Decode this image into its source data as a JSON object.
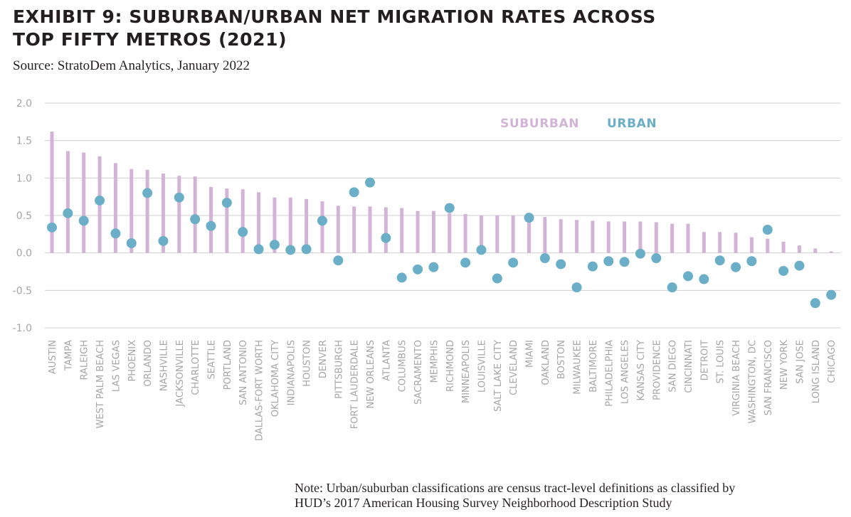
{
  "title_line1": "EXHIBIT 9: SUBURBAN/URBAN NET MIGRATION RATES ACROSS",
  "title_line2": "TOP FIFTY METROS (2021)",
  "source": "Source: StratoDem Analytics, January 2022",
  "note_line1": "Note: Urban/suburban classifications are census tract-level definitions as classified by",
  "note_line2": "HUD’s 2017 American Housing Survey Neighborhood Description Study",
  "colors": {
    "suburban": "#d4b3d8",
    "urban": "#6aaec8",
    "grid": "#cfcfcf",
    "tick": "#a6a6a6"
  },
  "chart_data": {
    "type": "bar",
    "ylim": [
      -1.0,
      2.0
    ],
    "yticks": [
      "2.0",
      "1.5",
      "1.0",
      "0.5",
      "0.0",
      "-0.5",
      "-1.0"
    ],
    "ytick_values": [
      2.0,
      1.5,
      1.0,
      0.5,
      0.0,
      -0.5,
      -1.0
    ],
    "grid": true,
    "legend": "top-right",
    "categories": [
      "AUSTIN",
      "TAMPA",
      "RALEIGH",
      "WEST PALM BEACH",
      "LAS VEGAS",
      "PHOENIX",
      "ORLANDO",
      "NASHVILLE",
      "JACKSONVILLE",
      "CHARLOTTE",
      "SEATTLE",
      "PORTLAND",
      "SAN ANTONIO",
      "DALLAS-FORT WORTH",
      "OKLAHOMA CITY",
      "INDIANAPOLIS",
      "HOUSTON",
      "DENVER",
      "PITTSBURGH",
      "FORT LAUDERDALE",
      "NEW ORLEANS",
      "ATLANTA",
      "COLUMBUS",
      "SACRAMENTO",
      "MEMPHIS",
      "RICHMOND",
      "MINNEAPOLIS",
      "LOUISVILLE",
      "SALT LAKE CITY",
      "CLEVELAND",
      "MIAMI",
      "OAKLAND",
      "BOSTON",
      "MILWAUKEE",
      "BALTIMORE",
      "PHILADELPHIA",
      "LOS ANGELES",
      "KANSAS CITY",
      "PROVIDENCE",
      "SAN DIEGO",
      "CINCINNATI",
      "DETROIT",
      "ST. LOUIS",
      "VIRGINIA BEACH",
      "WASHINGTON, DC",
      "SAN FRANCISCO",
      "NEW YORK",
      "SAN JOSE",
      "LONG ISLAND",
      "CHICAGO"
    ],
    "series": [
      {
        "name": "SUBURBAN",
        "type": "bar",
        "values": [
          1.62,
          1.36,
          1.34,
          1.29,
          1.2,
          1.12,
          1.11,
          1.06,
          1.03,
          1.02,
          0.88,
          0.86,
          0.85,
          0.81,
          0.74,
          0.74,
          0.72,
          0.69,
          0.63,
          0.62,
          0.62,
          0.61,
          0.6,
          0.56,
          0.56,
          0.53,
          0.52,
          0.5,
          0.5,
          0.5,
          0.49,
          0.48,
          0.45,
          0.44,
          0.43,
          0.42,
          0.42,
          0.42,
          0.41,
          0.39,
          0.39,
          0.28,
          0.28,
          0.27,
          0.21,
          0.19,
          0.15,
          0.1,
          0.06,
          0.02
        ]
      },
      {
        "name": "URBAN",
        "type": "scatter",
        "values": [
          0.34,
          0.53,
          0.43,
          0.7,
          0.26,
          0.13,
          0.8,
          0.16,
          0.74,
          0.45,
          0.36,
          0.67,
          0.28,
          0.05,
          0.11,
          0.04,
          0.05,
          0.43,
          -0.1,
          0.81,
          0.94,
          0.2,
          -0.33,
          -0.22,
          -0.19,
          0.6,
          -0.13,
          0.04,
          -0.34,
          -0.13,
          0.47,
          -0.07,
          -0.15,
          -0.46,
          -0.18,
          -0.11,
          -0.12,
          -0.01,
          -0.07,
          -0.46,
          -0.31,
          -0.35,
          -0.1,
          -0.19,
          -0.11,
          0.31,
          -0.24,
          -0.17,
          -0.67,
          -0.56
        ]
      }
    ]
  }
}
